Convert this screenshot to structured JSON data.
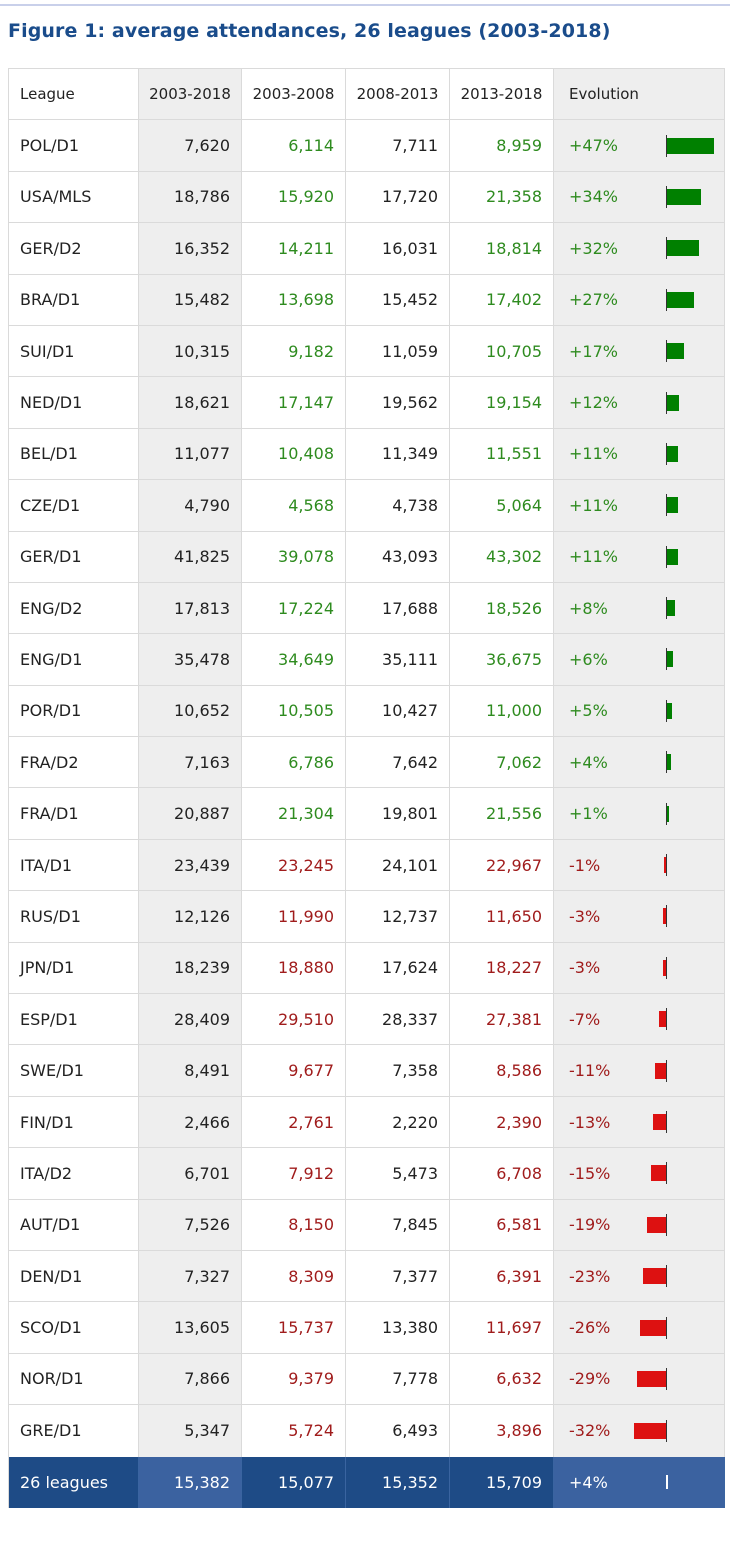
{
  "title": "Figure 1: average attendances, 26 leagues (2003-2018)",
  "chart_data": {
    "type": "table",
    "columns": [
      "League",
      "2003-2018",
      "2003-2008",
      "2008-2013",
      "2013-2018",
      "Evolution"
    ],
    "rows": [
      {
        "league": "POL/D1",
        "v0318": "7,620",
        "v0308": "6,114",
        "v0813": "7,711",
        "v1318": "8,959",
        "evolution": "+47%",
        "evo_value": 47
      },
      {
        "league": "USA/MLS",
        "v0318": "18,786",
        "v0308": "15,920",
        "v0813": "17,720",
        "v1318": "21,358",
        "evolution": "+34%",
        "evo_value": 34
      },
      {
        "league": "GER/D2",
        "v0318": "16,352",
        "v0308": "14,211",
        "v0813": "16,031",
        "v1318": "18,814",
        "evolution": "+32%",
        "evo_value": 32
      },
      {
        "league": "BRA/D1",
        "v0318": "15,482",
        "v0308": "13,698",
        "v0813": "15,452",
        "v1318": "17,402",
        "evolution": "+27%",
        "evo_value": 27
      },
      {
        "league": "SUI/D1",
        "v0318": "10,315",
        "v0308": "9,182",
        "v0813": "11,059",
        "v1318": "10,705",
        "evolution": "+17%",
        "evo_value": 17
      },
      {
        "league": "NED/D1",
        "v0318": "18,621",
        "v0308": "17,147",
        "v0813": "19,562",
        "v1318": "19,154",
        "evolution": "+12%",
        "evo_value": 12
      },
      {
        "league": "BEL/D1",
        "v0318": "11,077",
        "v0308": "10,408",
        "v0813": "11,349",
        "v1318": "11,551",
        "evolution": "+11%",
        "evo_value": 11
      },
      {
        "league": "CZE/D1",
        "v0318": "4,790",
        "v0308": "4,568",
        "v0813": "4,738",
        "v1318": "5,064",
        "evolution": "+11%",
        "evo_value": 11
      },
      {
        "league": "GER/D1",
        "v0318": "41,825",
        "v0308": "39,078",
        "v0813": "43,093",
        "v1318": "43,302",
        "evolution": "+11%",
        "evo_value": 11
      },
      {
        "league": "ENG/D2",
        "v0318": "17,813",
        "v0308": "17,224",
        "v0813": "17,688",
        "v1318": "18,526",
        "evolution": "+8%",
        "evo_value": 8
      },
      {
        "league": "ENG/D1",
        "v0318": "35,478",
        "v0308": "34,649",
        "v0813": "35,111",
        "v1318": "36,675",
        "evolution": "+6%",
        "evo_value": 6
      },
      {
        "league": "POR/D1",
        "v0318": "10,652",
        "v0308": "10,505",
        "v0813": "10,427",
        "v1318": "11,000",
        "evolution": "+5%",
        "evo_value": 5
      },
      {
        "league": "FRA/D2",
        "v0318": "7,163",
        "v0308": "6,786",
        "v0813": "7,642",
        "v1318": "7,062",
        "evolution": "+4%",
        "evo_value": 4
      },
      {
        "league": "FRA/D1",
        "v0318": "20,887",
        "v0308": "21,304",
        "v0813": "19,801",
        "v1318": "21,556",
        "evolution": "+1%",
        "evo_value": 1
      },
      {
        "league": "ITA/D1",
        "v0318": "23,439",
        "v0308": "23,245",
        "v0813": "24,101",
        "v1318": "22,967",
        "evolution": "-1%",
        "evo_value": -1
      },
      {
        "league": "RUS/D1",
        "v0318": "12,126",
        "v0308": "11,990",
        "v0813": "12,737",
        "v1318": "11,650",
        "evolution": "-3%",
        "evo_value": -3
      },
      {
        "league": "JPN/D1",
        "v0318": "18,239",
        "v0308": "18,880",
        "v0813": "17,624",
        "v1318": "18,227",
        "evolution": "-3%",
        "evo_value": -3
      },
      {
        "league": "ESP/D1",
        "v0318": "28,409",
        "v0308": "29,510",
        "v0813": "28,337",
        "v1318": "27,381",
        "evolution": "-7%",
        "evo_value": -7
      },
      {
        "league": "SWE/D1",
        "v0318": "8,491",
        "v0308": "9,677",
        "v0813": "7,358",
        "v1318": "8,586",
        "evolution": "-11%",
        "evo_value": -11
      },
      {
        "league": "FIN/D1",
        "v0318": "2,466",
        "v0308": "2,761",
        "v0813": "2,220",
        "v1318": "2,390",
        "evolution": "-13%",
        "evo_value": -13
      },
      {
        "league": "ITA/D2",
        "v0318": "6,701",
        "v0308": "7,912",
        "v0813": "5,473",
        "v1318": "6,708",
        "evolution": "-15%",
        "evo_value": -15
      },
      {
        "league": "AUT/D1",
        "v0318": "7,526",
        "v0308": "8,150",
        "v0813": "7,845",
        "v1318": "6,581",
        "evolution": "-19%",
        "evo_value": -19
      },
      {
        "league": "DEN/D1",
        "v0318": "7,327",
        "v0308": "8,309",
        "v0813": "7,377",
        "v1318": "6,391",
        "evolution": "-23%",
        "evo_value": -23
      },
      {
        "league": "SCO/D1",
        "v0318": "13,605",
        "v0308": "15,737",
        "v0813": "13,380",
        "v1318": "11,697",
        "evolution": "-26%",
        "evo_value": -26
      },
      {
        "league": "NOR/D1",
        "v0318": "7,866",
        "v0308": "9,379",
        "v0813": "7,778",
        "v1318": "6,632",
        "evolution": "-29%",
        "evo_value": -29
      },
      {
        "league": "GRE/D1",
        "v0318": "5,347",
        "v0308": "5,724",
        "v0813": "6,493",
        "v1318": "3,896",
        "evolution": "-32%",
        "evo_value": -32
      }
    ],
    "total": {
      "league": "26 leagues",
      "v0318": "15,382",
      "v0308": "15,077",
      "v0813": "15,352",
      "v1318": "15,709",
      "evolution": "+4%",
      "evo_value": 4
    },
    "colors": {
      "positive": "#2e8b1f",
      "negative": "#a01c1c",
      "bar_positive": "#008000",
      "bar_negative": "#dd1111",
      "total_bg": "#1e4b86",
      "title": "#1a4c8b"
    }
  }
}
